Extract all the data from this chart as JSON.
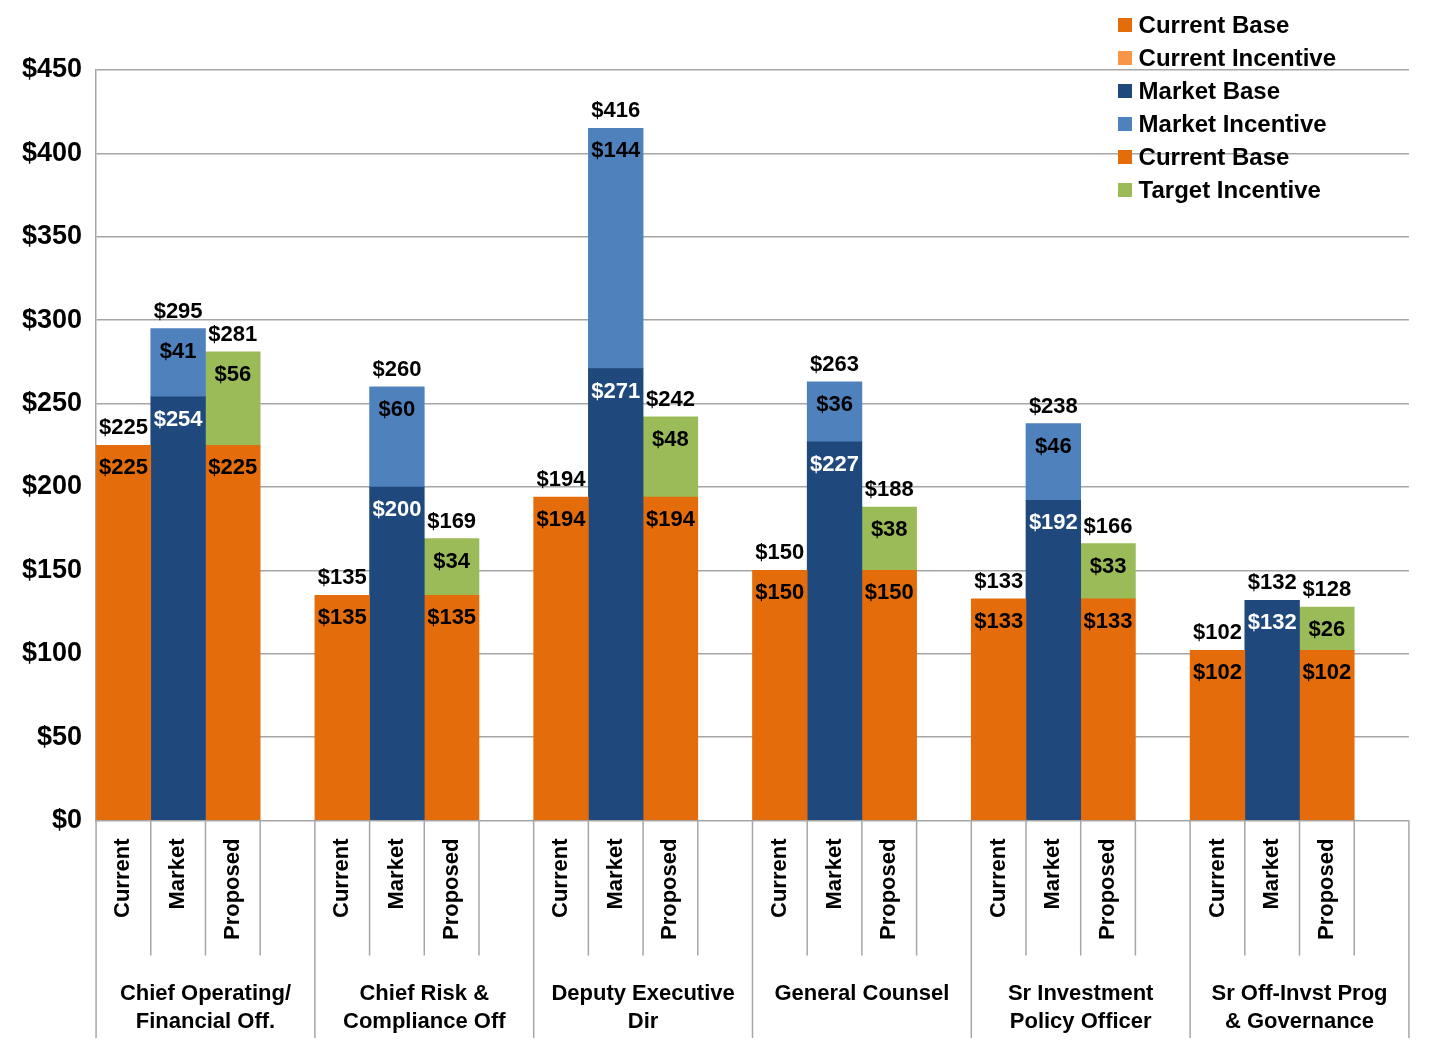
{
  "chart_data": {
    "type": "bar",
    "stacked": true,
    "categories": [
      "Current",
      "Market",
      "Proposed",
      null,
      "Current",
      "Market",
      "Proposed",
      null,
      "Current",
      "Market",
      "Proposed",
      null,
      "Current",
      "Market",
      "Proposed",
      null,
      "Current",
      "Market",
      "Proposed",
      null,
      "Current",
      "Market",
      "Proposed",
      null
    ],
    "series": [
      {
        "name": "Current Base",
        "color": "#e46c0a",
        "values": [
          225,
          null,
          null,
          null,
          135,
          null,
          null,
          null,
          194,
          null,
          null,
          null,
          150,
          null,
          null,
          null,
          133,
          null,
          null,
          null,
          102,
          null,
          null,
          null
        ],
        "value_labels": [
          "$225",
          null,
          null,
          null,
          "$135",
          null,
          null,
          null,
          "$194",
          null,
          null,
          null,
          "$150",
          null,
          null,
          null,
          "$133",
          null,
          null,
          null,
          "$102",
          null,
          null,
          null
        ]
      },
      {
        "name": "Current Incentive",
        "color": "#f79646",
        "values": [
          null,
          null,
          null,
          null,
          null,
          null,
          null,
          null,
          null,
          null,
          null,
          null,
          null,
          null,
          null,
          null,
          null,
          null,
          null,
          null,
          null,
          null,
          null,
          null
        ]
      },
      {
        "name": "Market Base",
        "color": "#1f497d",
        "values": [
          null,
          254,
          null,
          null,
          null,
          200,
          null,
          null,
          null,
          271,
          null,
          null,
          null,
          227,
          null,
          null,
          null,
          192,
          null,
          null,
          null,
          132,
          null,
          null
        ],
        "value_labels": [
          null,
          "$254",
          null,
          null,
          null,
          "$200",
          null,
          null,
          null,
          "$271",
          null,
          null,
          null,
          "$227",
          null,
          null,
          null,
          "$192",
          null,
          null,
          null,
          "$132",
          null,
          null
        ]
      },
      {
        "name": "Market Incentive",
        "color": "#4f81bd",
        "values": [
          null,
          41,
          null,
          null,
          null,
          60,
          null,
          null,
          null,
          144,
          null,
          null,
          null,
          36,
          null,
          null,
          null,
          46,
          null,
          null,
          null,
          null,
          null,
          null
        ],
        "value_labels": [
          null,
          "$41",
          null,
          null,
          null,
          "$60",
          null,
          null,
          null,
          "$144",
          null,
          null,
          null,
          "$36",
          null,
          null,
          null,
          "$46",
          null,
          null,
          null,
          null,
          null,
          null
        ]
      },
      {
        "name": "Current Base",
        "color": "#e46c0a",
        "values": [
          null,
          null,
          225,
          null,
          null,
          null,
          135,
          null,
          null,
          null,
          194,
          null,
          null,
          null,
          150,
          null,
          null,
          null,
          133,
          null,
          null,
          null,
          102,
          null
        ],
        "value_labels": [
          null,
          null,
          "$225",
          null,
          null,
          null,
          "$135",
          null,
          null,
          null,
          "$194",
          null,
          null,
          null,
          "$150",
          null,
          null,
          null,
          "$133",
          null,
          null,
          null,
          "$102",
          null
        ]
      },
      {
        "name": "Target Incentive",
        "color": "#9bbb59",
        "values": [
          null,
          null,
          56,
          null,
          null,
          null,
          34,
          null,
          null,
          null,
          48,
          null,
          null,
          null,
          38,
          null,
          null,
          null,
          33,
          null,
          null,
          null,
          26,
          null
        ],
        "value_labels": [
          null,
          null,
          "$56",
          null,
          null,
          null,
          "$34",
          null,
          null,
          null,
          "$48",
          null,
          null,
          null,
          "$38",
          null,
          null,
          null,
          "$33",
          null,
          null,
          null,
          "$26",
          null
        ]
      }
    ],
    "totals": [
      "$225",
      "$295",
      "$281",
      null,
      "$135",
      "$260",
      "$169",
      null,
      "$194",
      "$416",
      "$242",
      null,
      "$150",
      "$263",
      "$188",
      null,
      "$133",
      "$238",
      "$166",
      null,
      "$102",
      "$132",
      "$128",
      null
    ],
    "annotations": [
      "Chief Operating/\nFinancial Off.",
      "Chief Risk &\nCompliance Off",
      "Deputy Executive\nDir",
      "General Counsel",
      "Sr Investment\nPolicy Officer",
      "Sr Off-Invst Prog\n& Governance"
    ],
    "ylim": [
      0,
      450
    ],
    "yticks": [
      {
        "value": 0,
        "label": "$0"
      },
      {
        "value": 50,
        "label": "$50"
      },
      {
        "value": 100,
        "label": "$100"
      },
      {
        "value": 150,
        "label": "$150"
      },
      {
        "value": 200,
        "label": "$200"
      },
      {
        "value": 250,
        "label": "$250"
      },
      {
        "value": 300,
        "label": "$300"
      },
      {
        "value": 350,
        "label": "$350"
      },
      {
        "value": 400,
        "label": "$400"
      },
      {
        "value": 450,
        "label": "$450"
      }
    ],
    "grid": "y",
    "legend": "top right"
  }
}
